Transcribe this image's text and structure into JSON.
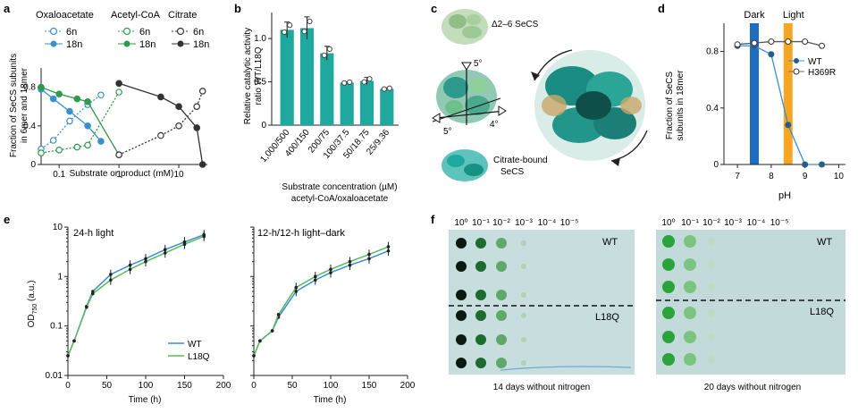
{
  "panel_labels": {
    "a": "a",
    "b": "b",
    "c": "c",
    "d": "d",
    "e": "e",
    "f": "f"
  },
  "colors": {
    "oxaloacetate": "#3a8fd1",
    "acetyl_coa": "#2e9a4a",
    "citrate": "#333333",
    "teal_bar": "#1fa89e",
    "dark_band": "#1f6dbf",
    "light_band": "#f5a623",
    "wt_line": "#3a8fd1",
    "l18q_line": "#5cb85c",
    "plate_bg": "#c8dede"
  },
  "panel_a": {
    "legend": {
      "oxaloacetate": "Oxaloacetate",
      "acetyl_coa": "Acetyl-CoA",
      "citrate": "Citrate",
      "n6": "6n",
      "n18": "18n"
    },
    "ylabel_line1": "Fraction of SeCS subunits",
    "ylabel_line2": "in 6mer and 18mer",
    "xlabel": "Substrate or product (mM)",
    "yticks": [
      "0",
      "0.4",
      "0.8"
    ],
    "xticks": [
      "0.1",
      "1",
      "10"
    ]
  },
  "panel_b": {
    "ylabel_line1": "Relative catalytic activity",
    "ylabel_line2": "ratio WT/L18Q",
    "xlabel_line1": "Substrate concentration (µM)",
    "xlabel_line2": "acetyl-CoA/oxaloacetate",
    "yticks": [
      "0",
      "0.5",
      "1.0"
    ]
  },
  "panel_c": {
    "label_top": "Δ2–6 SeCS",
    "label_bottom_line1": "Citrate-bound",
    "label_bottom_line2": "SeCS",
    "angle_top": "5°",
    "angle_left": "5°",
    "angle_right": "4°"
  },
  "panel_d": {
    "band_dark": "Dark",
    "band_light": "Light",
    "ylabel_line1": "Fraction of SeCS",
    "ylabel_line2": "subunits in 18mer",
    "xlabel": "pH",
    "legend_wt": "WT",
    "legend_h369r": "H369R",
    "yticks": [
      "0",
      "0.4",
      "0.8"
    ],
    "xticks": [
      "7",
      "8",
      "9",
      "10"
    ]
  },
  "panel_e": {
    "left_title": "24-h light",
    "right_title": "12-h/12-h light–dark",
    "ylabel": "OD",
    "ylabel_sub": "750",
    "ylabel_unit": " (a.u.)",
    "xlabel": "Time (h)",
    "legend_wt": "WT",
    "legend_l18q": "L18Q",
    "yticks": [
      "0.01",
      "0.1",
      "1",
      "10"
    ],
    "xticks": [
      "0",
      "50",
      "100",
      "150",
      "200"
    ]
  },
  "panel_f": {
    "dilution_labels": [
      "10⁰",
      "10⁻¹",
      "10⁻²",
      "10⁻³",
      "10⁻⁴",
      "10⁻⁵"
    ],
    "wt_label": "WT",
    "l18q_label": "L18Q",
    "caption_left": "14 days without nitrogen",
    "caption_right": "20 days without nitrogen"
  },
  "chart_data": [
    {
      "type": "line",
      "panel": "a",
      "xscale": "log",
      "xlim": [
        0.05,
        30
      ],
      "ylim": [
        0,
        1.0
      ],
      "series": [
        {
          "name": "Oxaloacetate 6n",
          "x": [
            0.05,
            0.08,
            0.15,
            0.3,
            0.5
          ],
          "y": [
            0.16,
            0.25,
            0.45,
            0.62,
            0.72
          ]
        },
        {
          "name": "Oxaloacetate 18n",
          "x": [
            0.05,
            0.08,
            0.15,
            0.3,
            0.5
          ],
          "y": [
            0.78,
            0.68,
            0.55,
            0.4,
            0.24
          ]
        },
        {
          "name": "Acetyl-CoA 6n",
          "x": [
            0.05,
            0.1,
            0.2,
            0.3,
            1
          ],
          "y": [
            0.12,
            0.15,
            0.18,
            0.2,
            0.75
          ]
        },
        {
          "name": "Acetyl-CoA 18n",
          "x": [
            0.05,
            0.1,
            0.2,
            0.3,
            1
          ],
          "y": [
            0.8,
            0.73,
            0.68,
            0.65,
            0.1
          ]
        },
        {
          "name": "Citrate 6n",
          "x": [
            1,
            5,
            10,
            20,
            25
          ],
          "y": [
            0.1,
            0.3,
            0.4,
            0.6,
            0.76
          ]
        },
        {
          "name": "Citrate 18n",
          "x": [
            1,
            5,
            10,
            20,
            25
          ],
          "y": [
            0.84,
            0.7,
            0.6,
            0.38,
            0.0
          ]
        }
      ]
    },
    {
      "type": "bar",
      "panel": "b",
      "categories": [
        "1,000/500",
        "400/150",
        "200/75",
        "100/37.5",
        "50/18.75",
        "25/9.36"
      ],
      "values": [
        1.1,
        1.12,
        0.83,
        0.49,
        0.51,
        0.42
      ],
      "errors": [
        0.09,
        0.13,
        0.08,
        0.01,
        0.04,
        0.01
      ],
      "ylim": [
        0,
        1.3
      ]
    },
    {
      "type": "line",
      "panel": "d",
      "xlim": [
        6.6,
        10.2
      ],
      "ylim": [
        0,
        1.0
      ],
      "series": [
        {
          "name": "WT",
          "x": [
            7,
            7.5,
            8,
            8.5,
            9,
            9.5
          ],
          "y": [
            0.84,
            0.84,
            0.78,
            0.28,
            0.0,
            0.0
          ]
        },
        {
          "name": "H369R",
          "x": [
            7,
            7.5,
            8,
            8.5,
            9,
            9.5
          ],
          "y": [
            0.85,
            0.86,
            0.87,
            0.87,
            0.87,
            0.84
          ]
        }
      ],
      "bands": [
        {
          "name": "Dark",
          "x": 7.5
        },
        {
          "name": "Light",
          "x": 8.5
        }
      ]
    },
    {
      "type": "line",
      "panel": "e-left",
      "yscale": "log",
      "xlim": [
        0,
        200
      ],
      "ylim": [
        0.01,
        10
      ],
      "series": [
        {
          "name": "WT",
          "x": [
            0,
            8,
            24,
            32,
            55,
            80,
            100,
            125,
            150,
            175
          ],
          "y": [
            0.025,
            0.05,
            0.25,
            0.5,
            1.1,
            1.7,
            2.3,
            3.5,
            5.0,
            7.0
          ]
        },
        {
          "name": "L18Q",
          "x": [
            0,
            8,
            24,
            32,
            55,
            80,
            100,
            125,
            150,
            175
          ],
          "y": [
            0.025,
            0.05,
            0.24,
            0.45,
            0.85,
            1.4,
            2.0,
            3.0,
            4.5,
            6.5
          ]
        }
      ]
    },
    {
      "type": "line",
      "panel": "e-right",
      "yscale": "log",
      "xlim": [
        0,
        200
      ],
      "ylim": [
        0.01,
        10
      ],
      "series": [
        {
          "name": "WT",
          "x": [
            0,
            8,
            24,
            32,
            55,
            80,
            100,
            125,
            150,
            175
          ],
          "y": [
            0.025,
            0.05,
            0.08,
            0.15,
            0.5,
            0.85,
            1.2,
            1.7,
            2.3,
            3.3
          ]
        },
        {
          "name": "L18Q",
          "x": [
            0,
            8,
            24,
            32,
            55,
            80,
            100,
            125,
            150,
            175
          ],
          "y": [
            0.025,
            0.05,
            0.08,
            0.17,
            0.6,
            1.0,
            1.4,
            2.0,
            2.8,
            4.0
          ]
        }
      ]
    }
  ]
}
